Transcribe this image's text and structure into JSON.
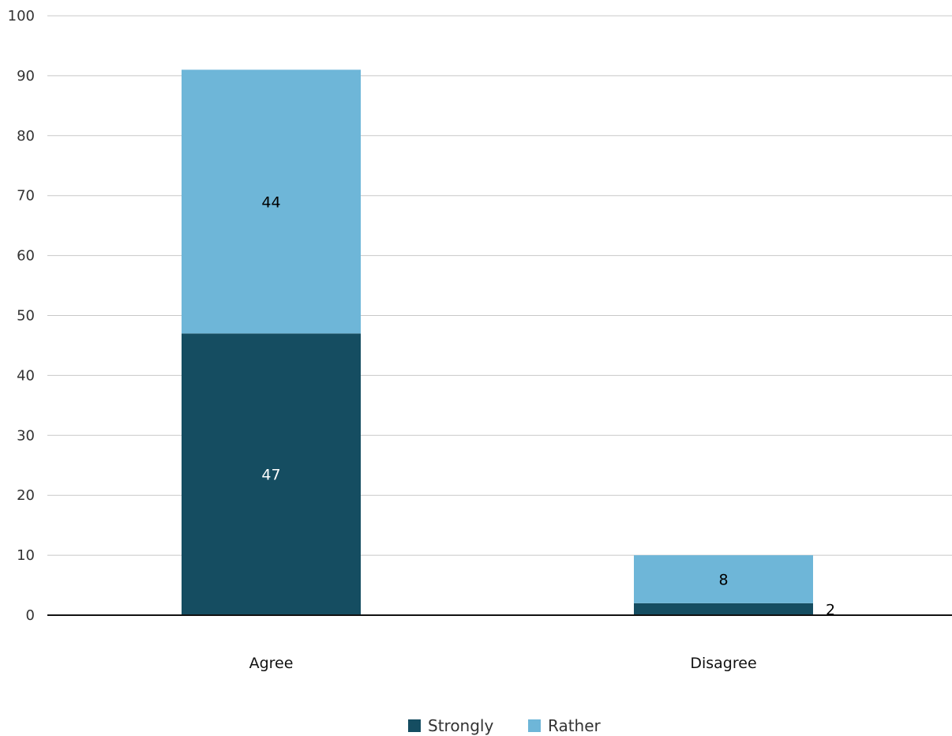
{
  "chart_data": {
    "type": "bar",
    "stacked": true,
    "categories": [
      "Agree",
      "Disagree"
    ],
    "series": [
      {
        "name": "Strongly",
        "values": [
          47,
          2
        ],
        "color": "#154d61"
      },
      {
        "name": "Rather",
        "values": [
          44,
          8
        ],
        "color": "#6eb6d8"
      }
    ],
    "ylim": [
      0,
      100
    ],
    "yticks": [
      "0",
      "10",
      "20",
      "30",
      "40",
      "50",
      "60",
      "70",
      "80",
      "90",
      "100"
    ],
    "grid": true,
    "legend": "bottom-center",
    "label_colors": {
      "dark_bar": "#ffffff",
      "light_bar": "#000000"
    }
  }
}
